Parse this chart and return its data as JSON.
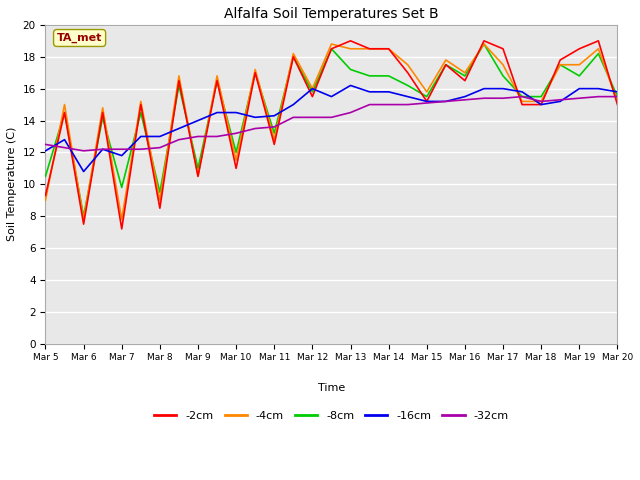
{
  "title": "Alfalfa Soil Temperatures Set B",
  "xlabel": "Time",
  "ylabel": "Soil Temperature (C)",
  "ylim": [
    0,
    20
  ],
  "xlim": [
    0,
    15
  ],
  "fig_bg_color": "#ffffff",
  "plot_bg_color": "#e8e8e8",
  "grid_color": "#cccccc",
  "ta_met_label": "TA_met",
  "ta_met_bg": "#ffffcc",
  "ta_met_border": "#999900",
  "ta_met_text_color": "#990000",
  "series": {
    "-2cm": {
      "color": "#ff0000",
      "lw": 1.2
    },
    "-4cm": {
      "color": "#ff8800",
      "lw": 1.2
    },
    "-8cm": {
      "color": "#00cc00",
      "lw": 1.2
    },
    "-16cm": {
      "color": "#0000ee",
      "lw": 1.2
    },
    "-32cm": {
      "color": "#aa00aa",
      "lw": 1.2
    }
  },
  "xtick_labels": [
    "Mar 5",
    "Mar 6",
    "Mar 7",
    "Mar 8",
    "Mar 9",
    "Mar 10",
    "Mar 11",
    "Mar 12",
    "Mar 13",
    "Mar 14",
    "Mar 15",
    "Mar 16",
    "Mar 17",
    "Mar 18",
    "Mar 19",
    "Mar 20"
  ],
  "ytick_labels": [
    "0",
    "2",
    "4",
    "6",
    "8",
    "10",
    "12",
    "14",
    "16",
    "18",
    "20"
  ],
  "x": [
    0,
    0.5,
    1.0,
    1.5,
    2.0,
    2.5,
    3.0,
    3.5,
    4.0,
    4.5,
    5.0,
    5.5,
    6.0,
    6.5,
    7.0,
    7.5,
    8.0,
    8.5,
    9.0,
    9.5,
    10.0,
    10.5,
    11.0,
    11.5,
    12.0,
    12.5,
    13.0,
    13.5,
    14.0,
    14.5,
    15.0
  ],
  "y_2cm": [
    9.3,
    14.5,
    7.5,
    14.5,
    7.2,
    15.0,
    8.5,
    16.5,
    10.5,
    16.5,
    11.0,
    17.0,
    12.5,
    18.0,
    15.5,
    18.5,
    19.0,
    18.5,
    18.5,
    17.0,
    15.2,
    17.5,
    16.5,
    19.0,
    18.5,
    15.0,
    15.0,
    17.8,
    18.5,
    19.0,
    15.0
  ],
  "y_4cm": [
    9.0,
    15.0,
    7.8,
    14.8,
    7.8,
    15.2,
    9.0,
    16.8,
    10.5,
    16.8,
    11.5,
    17.2,
    12.8,
    18.2,
    16.0,
    18.8,
    18.5,
    18.5,
    18.5,
    17.5,
    15.8,
    17.8,
    17.0,
    18.8,
    17.5,
    15.2,
    15.2,
    17.5,
    17.5,
    18.5,
    15.2
  ],
  "y_8cm": [
    10.5,
    14.5,
    8.0,
    14.2,
    9.8,
    14.5,
    9.5,
    16.2,
    11.0,
    16.5,
    12.0,
    17.0,
    13.2,
    18.0,
    15.8,
    18.5,
    17.2,
    16.8,
    16.8,
    16.2,
    15.5,
    17.5,
    16.8,
    18.8,
    16.8,
    15.5,
    15.5,
    17.5,
    16.8,
    18.2,
    15.5
  ],
  "y_16cm": [
    12.1,
    12.8,
    10.8,
    12.2,
    11.8,
    13.0,
    13.0,
    13.5,
    14.0,
    14.5,
    14.5,
    14.2,
    14.3,
    15.0,
    16.0,
    15.5,
    16.2,
    15.8,
    15.8,
    15.5,
    15.2,
    15.2,
    15.5,
    16.0,
    16.0,
    15.8,
    15.0,
    15.2,
    16.0,
    16.0,
    15.8
  ],
  "y_32cm": [
    12.5,
    12.3,
    12.1,
    12.2,
    12.2,
    12.2,
    12.3,
    12.8,
    13.0,
    13.0,
    13.2,
    13.5,
    13.6,
    14.2,
    14.2,
    14.2,
    14.5,
    15.0,
    15.0,
    15.0,
    15.1,
    15.2,
    15.3,
    15.4,
    15.4,
    15.5,
    15.2,
    15.3,
    15.4,
    15.5,
    15.5
  ]
}
